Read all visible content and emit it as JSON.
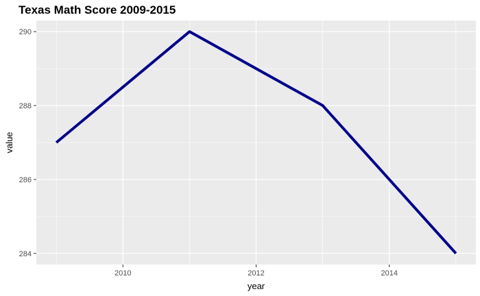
{
  "chart_data": {
    "type": "line",
    "title": "Texas Math Score 2009-2015",
    "xlabel": "year",
    "ylabel": "value",
    "x": [
      2009,
      2011,
      2013,
      2015
    ],
    "series": [
      {
        "values": [
          287,
          290,
          288,
          284
        ]
      }
    ],
    "xlim": [
      2008.7,
      2015.3
    ],
    "ylim": [
      283.7,
      290.3
    ],
    "x_ticks": [
      2010,
      2012,
      2014
    ],
    "y_ticks": [
      284,
      286,
      288,
      290
    ],
    "x_tick_labels": [
      "2010",
      "2012",
      "2014"
    ],
    "y_tick_labels": [
      "284",
      "286",
      "288",
      "290"
    ],
    "grid": true,
    "legend": "none",
    "colors": {
      "line": "#00008b",
      "panel": "#ebebeb",
      "grid": "#ffffff"
    }
  }
}
